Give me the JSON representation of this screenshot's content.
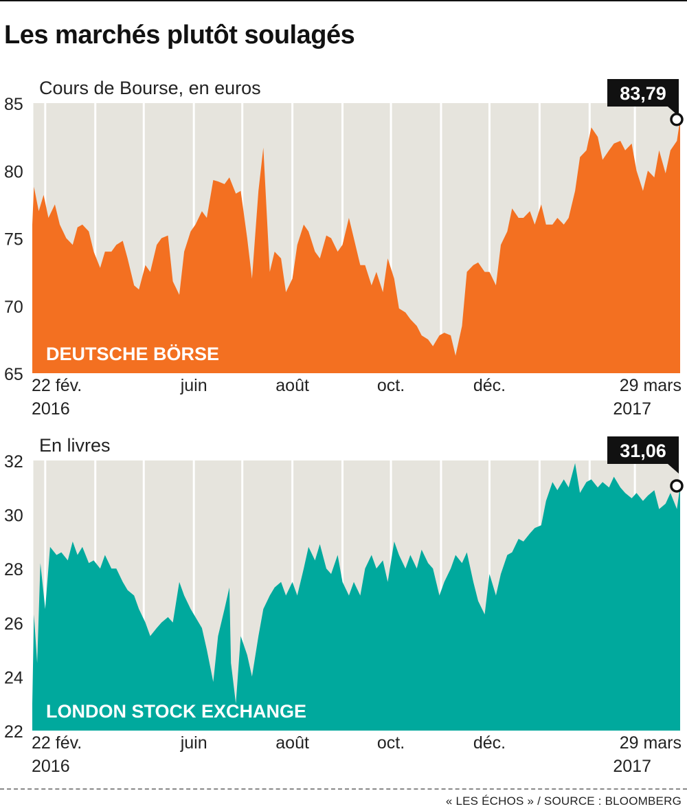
{
  "title": "Les marchés plutôt soulagés",
  "source": "« LES ÉCHOS » / SOURCE : BLOOMBERG",
  "colors": {
    "background_plot": "#e6e4dd",
    "deutsche": "#f37021",
    "london": "#00a99d"
  },
  "chart_data": [
    {
      "type": "area",
      "subtitle": "Cours de Bourse, en euros",
      "series_name": "DEUTSCHE BÖRSE",
      "color": "#f37021",
      "ylim": [
        65,
        85
      ],
      "yticks": [
        65,
        70,
        75,
        80,
        85
      ],
      "xlim": [
        "2016-02-22",
        "2017-03-29"
      ],
      "xticks": [
        {
          "date": "2016-02-22",
          "line1": "22 fév.",
          "line2": "2016"
        },
        {
          "date": "2016-06-01",
          "line1": "juin",
          "line2": ""
        },
        {
          "date": "2016-08-01",
          "line1": "août",
          "line2": ""
        },
        {
          "date": "2016-10-01",
          "line1": "oct.",
          "line2": ""
        },
        {
          "date": "2016-12-01",
          "line1": "déc.",
          "line2": ""
        },
        {
          "date": "2017-03-29",
          "line1": "29 mars",
          "line2": "2017"
        }
      ],
      "last_value_label": "83,79",
      "last_value": 83.79,
      "points": [
        [
          "2016-02-22",
          76.0
        ],
        [
          "2016-02-23",
          78.8
        ],
        [
          "2016-02-26",
          77.0
        ],
        [
          "2016-02-29",
          78.2
        ],
        [
          "2016-03-03",
          76.5
        ],
        [
          "2016-03-07",
          77.5
        ],
        [
          "2016-03-10",
          76.0
        ],
        [
          "2016-03-14",
          75.0
        ],
        [
          "2016-03-18",
          74.5
        ],
        [
          "2016-03-21",
          75.8
        ],
        [
          "2016-03-24",
          76.0
        ],
        [
          "2016-03-28",
          75.5
        ],
        [
          "2016-03-31",
          74.0
        ],
        [
          "2016-04-04",
          72.8
        ],
        [
          "2016-04-07",
          74.0
        ],
        [
          "2016-04-11",
          74.0
        ],
        [
          "2016-04-14",
          74.5
        ],
        [
          "2016-04-18",
          74.8
        ],
        [
          "2016-04-21",
          73.5
        ],
        [
          "2016-04-25",
          71.5
        ],
        [
          "2016-04-28",
          71.2
        ],
        [
          "2016-05-02",
          73.0
        ],
        [
          "2016-05-05",
          72.5
        ],
        [
          "2016-05-09",
          74.5
        ],
        [
          "2016-05-12",
          75.0
        ],
        [
          "2016-05-16",
          75.2
        ],
        [
          "2016-05-19",
          71.8
        ],
        [
          "2016-05-23",
          70.8
        ],
        [
          "2016-05-26",
          74.0
        ],
        [
          "2016-05-30",
          75.5
        ],
        [
          "2016-06-02",
          76.0
        ],
        [
          "2016-06-06",
          77.0
        ],
        [
          "2016-06-09",
          76.5
        ],
        [
          "2016-06-13",
          79.3
        ],
        [
          "2016-06-16",
          79.2
        ],
        [
          "2016-06-20",
          79.0
        ],
        [
          "2016-06-23",
          79.5
        ],
        [
          "2016-06-27",
          78.3
        ],
        [
          "2016-06-30",
          78.5
        ],
        [
          "2016-07-04",
          75.0
        ],
        [
          "2016-07-07",
          72.0
        ],
        [
          "2016-07-11",
          78.5
        ],
        [
          "2016-07-14",
          81.7
        ],
        [
          "2016-07-18",
          72.5
        ],
        [
          "2016-07-21",
          74.0
        ],
        [
          "2016-07-25",
          73.5
        ],
        [
          "2016-07-28",
          71.0
        ],
        [
          "2016-08-01",
          72.0
        ],
        [
          "2016-08-04",
          74.5
        ],
        [
          "2016-08-08",
          76.0
        ],
        [
          "2016-08-11",
          75.5
        ],
        [
          "2016-08-15",
          74.0
        ],
        [
          "2016-08-18",
          73.5
        ],
        [
          "2016-08-22",
          75.2
        ],
        [
          "2016-08-25",
          75.0
        ],
        [
          "2016-08-29",
          74.0
        ],
        [
          "2016-09-01",
          74.5
        ],
        [
          "2016-09-05",
          76.5
        ],
        [
          "2016-09-08",
          75.0
        ],
        [
          "2016-09-12",
          73.0
        ],
        [
          "2016-09-15",
          73.0
        ],
        [
          "2016-09-19",
          71.5
        ],
        [
          "2016-09-22",
          72.5
        ],
        [
          "2016-09-26",
          71.0
        ],
        [
          "2016-09-29",
          73.5
        ],
        [
          "2016-10-03",
          72.0
        ],
        [
          "2016-10-06",
          69.8
        ],
        [
          "2016-10-10",
          69.5
        ],
        [
          "2016-10-13",
          69.0
        ],
        [
          "2016-10-17",
          68.5
        ],
        [
          "2016-10-20",
          67.8
        ],
        [
          "2016-10-24",
          67.5
        ],
        [
          "2016-10-27",
          67.0
        ],
        [
          "2016-10-31",
          67.8
        ],
        [
          "2016-11-03",
          68.0
        ],
        [
          "2016-11-07",
          67.8
        ],
        [
          "2016-11-10",
          66.3
        ],
        [
          "2016-11-14",
          68.5
        ],
        [
          "2016-11-17",
          72.5
        ],
        [
          "2016-11-21",
          73.0
        ],
        [
          "2016-11-24",
          73.2
        ],
        [
          "2016-11-28",
          72.5
        ],
        [
          "2016-12-01",
          72.5
        ],
        [
          "2016-12-05",
          71.5
        ],
        [
          "2016-12-08",
          74.5
        ],
        [
          "2016-12-12",
          75.5
        ],
        [
          "2016-12-15",
          77.2
        ],
        [
          "2016-12-19",
          76.5
        ],
        [
          "2016-12-22",
          76.5
        ],
        [
          "2016-12-26",
          77.0
        ],
        [
          "2016-12-29",
          76.0
        ],
        [
          "2017-01-02",
          77.5
        ],
        [
          "2017-01-05",
          76.0
        ],
        [
          "2017-01-09",
          76.0
        ],
        [
          "2017-01-12",
          76.5
        ],
        [
          "2017-01-16",
          76.0
        ],
        [
          "2017-01-19",
          76.5
        ],
        [
          "2017-01-23",
          78.5
        ],
        [
          "2017-01-26",
          81.0
        ],
        [
          "2017-01-30",
          81.5
        ],
        [
          "2017-02-02",
          83.2
        ],
        [
          "2017-02-06",
          82.5
        ],
        [
          "2017-02-09",
          80.8
        ],
        [
          "2017-02-13",
          81.5
        ],
        [
          "2017-02-16",
          82.0
        ],
        [
          "2017-02-20",
          82.2
        ],
        [
          "2017-02-23",
          81.5
        ],
        [
          "2017-02-27",
          82.0
        ],
        [
          "2017-03-02",
          80.0
        ],
        [
          "2017-03-06",
          78.5
        ],
        [
          "2017-03-09",
          80.0
        ],
        [
          "2017-03-13",
          79.5
        ],
        [
          "2017-03-16",
          81.5
        ],
        [
          "2017-03-20",
          79.8
        ],
        [
          "2017-03-23",
          81.5
        ],
        [
          "2017-03-27",
          82.2
        ],
        [
          "2017-03-29",
          83.79
        ]
      ]
    },
    {
      "type": "area",
      "subtitle": "En livres",
      "series_name": "LONDON STOCK EXCHANGE",
      "color": "#00a99d",
      "ylim": [
        22,
        32
      ],
      "yticks": [
        22,
        24,
        26,
        28,
        30,
        32
      ],
      "xlim": [
        "2016-02-22",
        "2017-03-29"
      ],
      "xticks": [
        {
          "date": "2016-02-22",
          "line1": "22 fév.",
          "line2": "2016"
        },
        {
          "date": "2016-06-01",
          "line1": "juin",
          "line2": ""
        },
        {
          "date": "2016-08-01",
          "line1": "août",
          "line2": ""
        },
        {
          "date": "2016-10-01",
          "line1": "oct.",
          "line2": ""
        },
        {
          "date": "2016-12-01",
          "line1": "déc.",
          "line2": ""
        },
        {
          "date": "2017-03-29",
          "line1": "29 mars",
          "line2": "2017"
        }
      ],
      "last_value_label": "31,06",
      "last_value": 31.06,
      "points": [
        [
          "2016-02-22",
          23.0
        ],
        [
          "2016-02-23",
          26.3
        ],
        [
          "2016-02-25",
          24.5
        ],
        [
          "2016-02-27",
          28.2
        ],
        [
          "2016-03-01",
          26.5
        ],
        [
          "2016-03-04",
          28.8
        ],
        [
          "2016-03-08",
          28.5
        ],
        [
          "2016-03-11",
          28.6
        ],
        [
          "2016-03-15",
          28.3
        ],
        [
          "2016-03-18",
          29.0
        ],
        [
          "2016-03-21",
          28.5
        ],
        [
          "2016-03-24",
          28.8
        ],
        [
          "2016-03-28",
          28.2
        ],
        [
          "2016-03-31",
          28.3
        ],
        [
          "2016-04-04",
          28.0
        ],
        [
          "2016-04-07",
          28.5
        ],
        [
          "2016-04-11",
          28.0
        ],
        [
          "2016-04-14",
          28.0
        ],
        [
          "2016-04-18",
          27.5
        ],
        [
          "2016-04-21",
          27.2
        ],
        [
          "2016-04-25",
          27.0
        ],
        [
          "2016-04-28",
          26.5
        ],
        [
          "2016-05-02",
          26.0
        ],
        [
          "2016-05-05",
          25.5
        ],
        [
          "2016-05-09",
          25.8
        ],
        [
          "2016-05-12",
          26.0
        ],
        [
          "2016-05-16",
          26.2
        ],
        [
          "2016-05-19",
          26.0
        ],
        [
          "2016-05-23",
          27.5
        ],
        [
          "2016-05-26",
          27.0
        ],
        [
          "2016-05-30",
          26.5
        ],
        [
          "2016-06-02",
          26.2
        ],
        [
          "2016-06-06",
          25.8
        ],
        [
          "2016-06-09",
          25.0
        ],
        [
          "2016-06-13",
          23.8
        ],
        [
          "2016-06-16",
          25.5
        ],
        [
          "2016-06-20",
          26.5
        ],
        [
          "2016-06-23",
          27.3
        ],
        [
          "2016-06-24",
          24.5
        ],
        [
          "2016-06-27",
          23.0
        ],
        [
          "2016-06-30",
          25.5
        ],
        [
          "2016-07-04",
          24.8
        ],
        [
          "2016-07-07",
          24.0
        ],
        [
          "2016-07-11",
          25.5
        ],
        [
          "2016-07-14",
          26.5
        ],
        [
          "2016-07-18",
          27.0
        ],
        [
          "2016-07-21",
          27.3
        ],
        [
          "2016-07-25",
          27.5
        ],
        [
          "2016-07-28",
          27.0
        ],
        [
          "2016-08-01",
          27.5
        ],
        [
          "2016-08-04",
          27.0
        ],
        [
          "2016-08-08",
          28.0
        ],
        [
          "2016-08-11",
          28.8
        ],
        [
          "2016-08-15",
          28.3
        ],
        [
          "2016-08-18",
          28.9
        ],
        [
          "2016-08-22",
          28.0
        ],
        [
          "2016-08-25",
          27.8
        ],
        [
          "2016-08-29",
          28.5
        ],
        [
          "2016-09-01",
          27.5
        ],
        [
          "2016-09-05",
          27.0
        ],
        [
          "2016-09-08",
          27.5
        ],
        [
          "2016-09-12",
          27.0
        ],
        [
          "2016-09-15",
          28.0
        ],
        [
          "2016-09-19",
          28.5
        ],
        [
          "2016-09-22",
          28.0
        ],
        [
          "2016-09-26",
          28.3
        ],
        [
          "2016-09-29",
          27.5
        ],
        [
          "2016-10-03",
          29.0
        ],
        [
          "2016-10-06",
          28.5
        ],
        [
          "2016-10-10",
          28.0
        ],
        [
          "2016-10-13",
          28.5
        ],
        [
          "2016-10-17",
          28.0
        ],
        [
          "2016-10-20",
          28.7
        ],
        [
          "2016-10-24",
          28.2
        ],
        [
          "2016-10-27",
          28.0
        ],
        [
          "2016-10-31",
          27.0
        ],
        [
          "2016-11-03",
          27.5
        ],
        [
          "2016-11-07",
          28.0
        ],
        [
          "2016-11-10",
          28.5
        ],
        [
          "2016-11-14",
          28.2
        ],
        [
          "2016-11-17",
          28.6
        ],
        [
          "2016-11-21",
          27.5
        ],
        [
          "2016-11-24",
          26.8
        ],
        [
          "2016-11-28",
          26.3
        ],
        [
          "2016-12-01",
          27.8
        ],
        [
          "2016-12-05",
          27.0
        ],
        [
          "2016-12-08",
          27.8
        ],
        [
          "2016-12-12",
          28.5
        ],
        [
          "2016-12-15",
          28.6
        ],
        [
          "2016-12-19",
          29.1
        ],
        [
          "2016-12-22",
          29.0
        ],
        [
          "2016-12-26",
          29.3
        ],
        [
          "2016-12-29",
          29.5
        ],
        [
          "2017-01-02",
          29.6
        ],
        [
          "2017-01-05",
          30.5
        ],
        [
          "2017-01-09",
          31.2
        ],
        [
          "2017-01-12",
          30.9
        ],
        [
          "2017-01-16",
          31.3
        ],
        [
          "2017-01-19",
          31.0
        ],
        [
          "2017-01-23",
          31.9
        ],
        [
          "2017-01-26",
          30.8
        ],
        [
          "2017-01-30",
          31.2
        ],
        [
          "2017-02-02",
          31.3
        ],
        [
          "2017-02-06",
          31.0
        ],
        [
          "2017-02-09",
          31.2
        ],
        [
          "2017-02-13",
          31.0
        ],
        [
          "2017-02-16",
          31.4
        ],
        [
          "2017-02-20",
          31.0
        ],
        [
          "2017-02-23",
          30.8
        ],
        [
          "2017-02-27",
          30.6
        ],
        [
          "2017-03-02",
          30.8
        ],
        [
          "2017-03-06",
          30.5
        ],
        [
          "2017-03-09",
          30.7
        ],
        [
          "2017-03-13",
          30.9
        ],
        [
          "2017-03-16",
          30.2
        ],
        [
          "2017-03-20",
          30.4
        ],
        [
          "2017-03-23",
          30.8
        ],
        [
          "2017-03-27",
          30.2
        ],
        [
          "2017-03-29",
          31.06
        ]
      ]
    }
  ]
}
